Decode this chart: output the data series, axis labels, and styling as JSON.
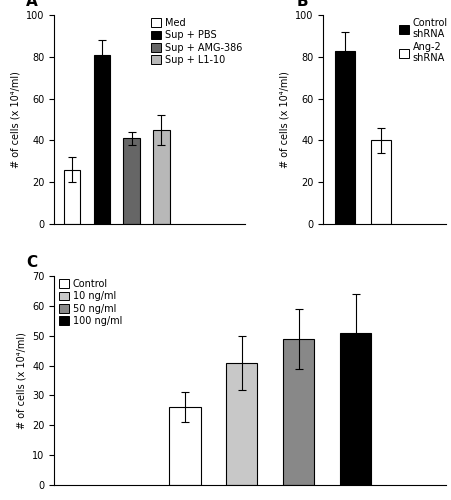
{
  "panel_A": {
    "categories": [
      "Med",
      "Sup + PBS",
      "Sup + AMG-386",
      "Sup + L1-10"
    ],
    "values": [
      26,
      81,
      41,
      45
    ],
    "errors": [
      6,
      7,
      3,
      7
    ],
    "colors": [
      "white",
      "black",
      "#666666",
      "#b8b8b8"
    ],
    "edgecolors": [
      "black",
      "black",
      "black",
      "black"
    ],
    "ylim": [
      0,
      100
    ],
    "yticks": [
      0,
      20,
      40,
      60,
      80,
      100
    ],
    "ylabel": "# of cells (x 10⁴/ml)",
    "legend_labels": [
      "Med",
      "Sup + PBS",
      "Sup + AMG-386",
      "Sup + L1-10"
    ],
    "legend_colors": [
      "white",
      "black",
      "#666666",
      "#b8b8b8"
    ],
    "panel_label": "A"
  },
  "panel_B": {
    "categories": [
      "Control\nshRNA",
      "Ang-2\nshRNA"
    ],
    "values": [
      83,
      40
    ],
    "errors": [
      9,
      6
    ],
    "colors": [
      "black",
      "white"
    ],
    "edgecolors": [
      "black",
      "black"
    ],
    "ylim": [
      0,
      100
    ],
    "yticks": [
      0,
      20,
      40,
      60,
      80,
      100
    ],
    "ylabel": "# of cells (x 10⁴/ml)",
    "legend_labels": [
      "Control\nshRNA",
      "Ang-2\nshRNA"
    ],
    "legend_colors": [
      "black",
      "white"
    ],
    "panel_label": "B"
  },
  "panel_C": {
    "categories": [
      "Control",
      "10 ng/ml",
      "50 ng/ml",
      "100 ng/ml"
    ],
    "values": [
      26,
      41,
      49,
      51
    ],
    "errors": [
      5,
      9,
      10,
      13
    ],
    "colors": [
      "white",
      "#c8c8c8",
      "#888888",
      "black"
    ],
    "edgecolors": [
      "black",
      "black",
      "black",
      "black"
    ],
    "ylim": [
      0,
      70
    ],
    "yticks": [
      0,
      10,
      20,
      30,
      40,
      50,
      60,
      70
    ],
    "ylabel": "# of cells (x 10⁴/ml)",
    "legend_labels": [
      "Control",
      "10 ng/ml",
      "50 ng/ml",
      "100 ng/ml"
    ],
    "legend_colors": [
      "white",
      "#c8c8c8",
      "#888888",
      "black"
    ],
    "panel_label": "C"
  },
  "background_color": "white",
  "bar_width": 0.55,
  "fontsize": 7,
  "label_fontsize": 11
}
